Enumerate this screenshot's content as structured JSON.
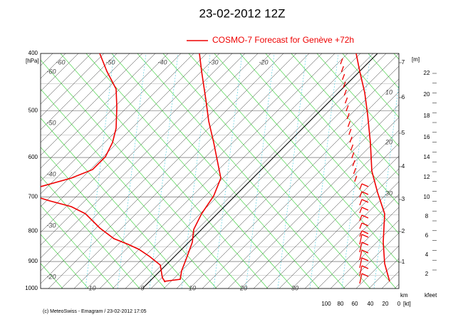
{
  "header": {
    "title": "23-02-2012  12Z",
    "legend": "COSMO-7 Forecast for Genève     +72h"
  },
  "pressure_axis": {
    "unit": "[hPa]",
    "labels": [
      "400",
      "500",
      "600",
      "700",
      "800",
      "900",
      "1000"
    ]
  },
  "temperature_labels_bottom": [
    "-10",
    "0",
    "10",
    "20",
    "30"
  ],
  "temperature_labels_top": [
    "-60",
    "-50",
    "-40",
    "-30",
    "-20"
  ],
  "theta_labels": [
    "-60",
    "-50",
    "-40",
    "-30",
    "-20"
  ],
  "mixing_labels": [
    "10",
    "20",
    "30"
  ],
  "height_axis": {
    "unit": "[m]",
    "labels": [
      "1",
      "2",
      "3",
      "4",
      "5",
      "6",
      "7"
    ]
  },
  "kleet_axis": {
    "unit": "kfeet",
    "labels": [
      "2",
      "4",
      "6",
      "8",
      "10",
      "12",
      "14",
      "16",
      "18",
      "20",
      "22"
    ]
  },
  "wind_axis": {
    "unit": "[kt]",
    "km": "km",
    "labels": [
      "100",
      "80",
      "60",
      "40",
      "20",
      "0"
    ]
  },
  "footer": "(c) MeteoSwiss - Emagram / 23-02-2012  17:05"
}
